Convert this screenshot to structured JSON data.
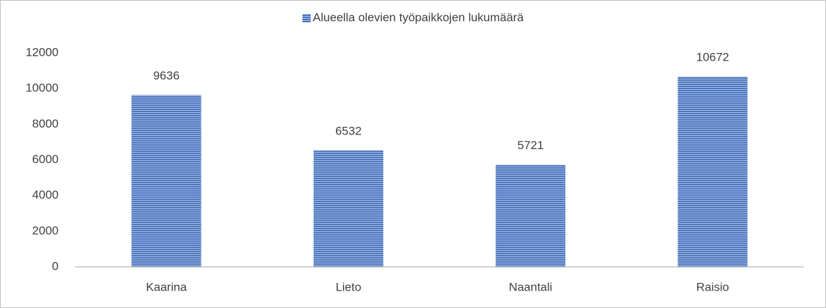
{
  "chart_data": {
    "type": "bar",
    "categories": [
      "Kaarina",
      "Lieto",
      "Naantali",
      "Raisio"
    ],
    "series": [
      {
        "name": "Alueella olevien työpaikkojen lukumäärä",
        "color": "#4a76c0",
        "values": [
          9636,
          6532,
          5721,
          10672
        ]
      }
    ],
    "ylim": [
      0,
      12000
    ],
    "yticks": [
      0,
      2000,
      4000,
      6000,
      8000,
      10000,
      12000
    ],
    "grid": false,
    "legend": "top"
  }
}
